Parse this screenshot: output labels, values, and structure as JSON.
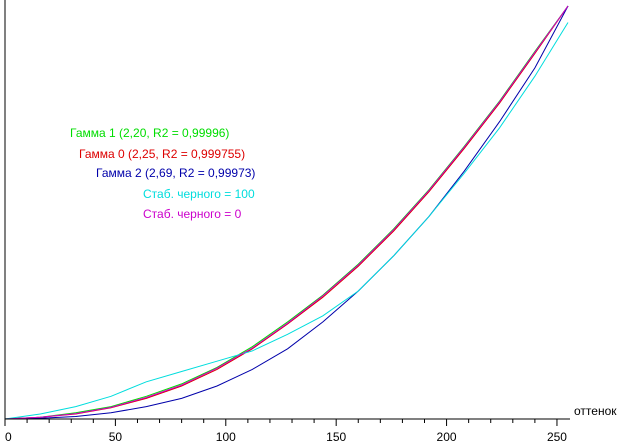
{
  "chart_data": {
    "type": "line",
    "xlabel": "оттенок",
    "ylabel": "",
    "xlim": [
      0,
      255
    ],
    "ylim": [
      0,
      1
    ],
    "x_ticks": [
      0,
      50,
      100,
      150,
      200,
      250
    ],
    "x_tick_labels": [
      "0",
      "50",
      "100",
      "150",
      "200",
      "250"
    ],
    "grid": false,
    "legend_position": "upper-left, inside plot",
    "series": [
      {
        "name": "Гамма 1 (2,20, R2 = 0,99996)",
        "color": "#00dd00",
        "x": [
          0,
          16,
          32,
          48,
          64,
          80,
          96,
          112,
          128,
          144,
          160,
          176,
          192,
          208,
          224,
          240,
          255
        ],
        "y": [
          0,
          0.004,
          0.015,
          0.03,
          0.055,
          0.085,
          0.125,
          0.175,
          0.235,
          0.3,
          0.375,
          0.46,
          0.555,
          0.66,
          0.77,
          0.89,
          1.0
        ]
      },
      {
        "name": "Гамма 0 (2,25, R2 = 0,999755)",
        "color": "#dd0000",
        "x": [
          0,
          16,
          32,
          48,
          64,
          80,
          96,
          112,
          128,
          144,
          160,
          176,
          192,
          208,
          224,
          240,
          255
        ],
        "y": [
          0,
          0.004,
          0.012,
          0.027,
          0.05,
          0.08,
          0.12,
          0.17,
          0.23,
          0.295,
          0.37,
          0.455,
          0.55,
          0.655,
          0.765,
          0.885,
          1.0
        ]
      },
      {
        "name": "Гамма 2 (2,69, R2 = 0,99973)",
        "color": "#0000aa",
        "x": [
          0,
          16,
          32,
          48,
          64,
          80,
          96,
          112,
          128,
          144,
          160,
          176,
          192,
          208,
          224,
          240,
          255
        ],
        "y": [
          0,
          0.002,
          0.006,
          0.015,
          0.03,
          0.05,
          0.08,
          0.12,
          0.17,
          0.235,
          0.31,
          0.395,
          0.49,
          0.6,
          0.72,
          0.85,
          1.0
        ]
      },
      {
        "name": "Стаб. черного = 100",
        "color": "#00dddd",
        "x": [
          0,
          16,
          32,
          48,
          64,
          80,
          96,
          112,
          128,
          144,
          160,
          176,
          192,
          208,
          224,
          240,
          255
        ],
        "y": [
          0,
          0.012,
          0.03,
          0.055,
          0.09,
          0.115,
          0.14,
          0.165,
          0.205,
          0.25,
          0.31,
          0.395,
          0.49,
          0.595,
          0.705,
          0.83,
          0.96
        ]
      },
      {
        "name": "Стаб. черного = 0",
        "color": "#cc00cc",
        "x": [
          0,
          16,
          32,
          48,
          64,
          80,
          96,
          112,
          128,
          144,
          160,
          176,
          192,
          208,
          224,
          240,
          255
        ],
        "y": [
          0,
          0.004,
          0.013,
          0.028,
          0.052,
          0.082,
          0.123,
          0.172,
          0.232,
          0.298,
          0.373,
          0.458,
          0.553,
          0.658,
          0.768,
          0.888,
          1.0
        ]
      }
    ]
  }
}
